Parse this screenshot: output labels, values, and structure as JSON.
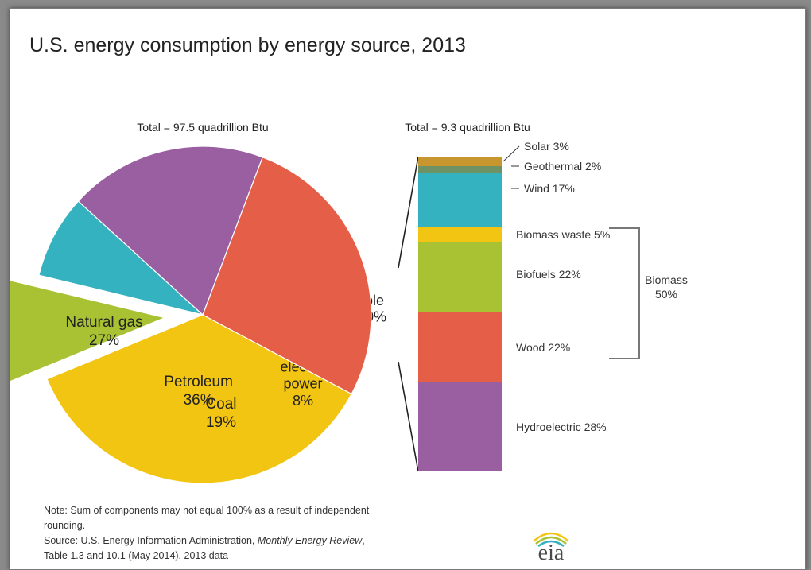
{
  "title": "U.S. energy consumption by energy source, 2013",
  "chart_data": [
    {
      "type": "pie",
      "title": "Total = 97.5 quadrillion Btu",
      "unit": "%",
      "slices": [
        {
          "label": "Petroleum",
          "value": 36,
          "display": "36%",
          "color": "#f2c512"
        },
        {
          "label": "Renewable energy",
          "value": 10,
          "display": "10%",
          "color": "#a9c234",
          "exploded": true
        },
        {
          "label": "Nuclear electric power",
          "value": 8,
          "display": "8%",
          "color": "#35b2bf"
        },
        {
          "label": "Coal",
          "value": 19,
          "display": "19%",
          "color": "#9a5fa1"
        },
        {
          "label": "Natural gas",
          "value": 27,
          "display": "27%",
          "color": "#e55f48"
        }
      ]
    },
    {
      "type": "bar",
      "stacked": true,
      "title": "Total = 9.3 quadrillion Btu",
      "unit": "%",
      "segments": [
        {
          "label": "Solar",
          "value": 3,
          "display": "Solar 3%",
          "color": "#c7962e"
        },
        {
          "label": "Geothermal",
          "value": 2,
          "display": "Geothermal 2%",
          "color": "#6f9264"
        },
        {
          "label": "Wind",
          "value": 17,
          "display": "Wind 17%",
          "color": "#35b2bf"
        },
        {
          "label": "Biomass waste",
          "value": 5,
          "display": "Biomass waste 5%",
          "color": "#f2c512"
        },
        {
          "label": "Biofuels",
          "value": 22,
          "display": "Biofuels 22%",
          "color": "#a9c234"
        },
        {
          "label": "Wood",
          "value": 22,
          "display": "Wood 22%",
          "color": "#e55f48"
        },
        {
          "label": "Hydroelectric",
          "value": 28,
          "display": "Hydroelectric 28%",
          "color": "#9a5fa1"
        }
      ],
      "groups": [
        {
          "label": "Biomass",
          "value": 50,
          "display": "50%",
          "members": [
            "Biomass waste",
            "Biofuels",
            "Wood"
          ]
        }
      ]
    }
  ],
  "footer": {
    "note": "Note: Sum of components may not equal 100% as a result  of independent",
    "note_cont": "rounding.",
    "source_prefix": "Source: U.S. Energy Information Administration, ",
    "source_title": "Monthly Energy Review",
    "source_suffix": ",",
    "source_line2": "Table 1.3 and 10.1 (May 2014), 2013 data"
  },
  "logo": {
    "text": "eia",
    "color": "#4a4a4a",
    "arc_colors": [
      "#f2c512",
      "#a9c234",
      "#35b2bf"
    ]
  }
}
